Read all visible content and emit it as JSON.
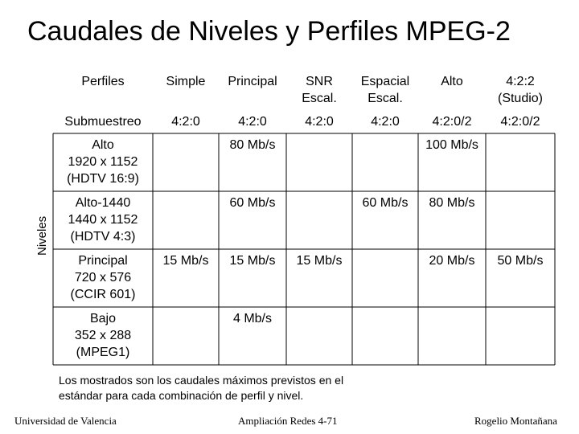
{
  "title": "Caudales de Niveles y Perfiles MPEG-2",
  "niveles_label": "Niveles",
  "table": {
    "header_profiles": [
      "Perfiles",
      "Simple",
      "Principal",
      "SNR\nEscal.",
      "Espacial\nEscal.",
      "Alto",
      "4:2:2\n(Studio)"
    ],
    "header_submuestreo": [
      "Submuestreo",
      "4:2:0",
      "4:2:0",
      "4:2:0",
      "4:2:0",
      "4:2:0/2",
      "4:2:0/2"
    ],
    "rows": [
      {
        "level": "Alto\n1920 x 1152\n(HDTV 16:9)",
        "values": [
          "",
          "80 Mb/s",
          "",
          "",
          "100 Mb/s",
          ""
        ]
      },
      {
        "level": "Alto-1440\n1440 x 1152\n(HDTV 4:3)",
        "values": [
          "",
          "60 Mb/s",
          "",
          "60 Mb/s",
          "80 Mb/s",
          ""
        ]
      },
      {
        "level": "Principal\n720 x 576\n(CCIR 601)",
        "values": [
          "15 Mb/s",
          "15 Mb/s",
          "15 Mb/s",
          "",
          "20 Mb/s",
          "50 Mb/s"
        ]
      },
      {
        "level": "Bajo\n352 x 288\n(MPEG1)",
        "values": [
          "",
          "4 Mb/s",
          "",
          "",
          "",
          ""
        ]
      }
    ]
  },
  "note": "Los mostrados son los caudales máximos previstos en el\nestándar para cada combinación de perfil y nivel.",
  "footer": {
    "left": "Universidad de Valencia",
    "center": "Ampliación Redes 4-71",
    "right": "Rogelio Montañana"
  }
}
